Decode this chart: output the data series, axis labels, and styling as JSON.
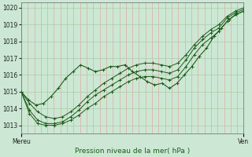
{
  "title": "Pression niveau de la mer( hPa )",
  "xlabel_left": "Mereu",
  "xlabel_right": "Ven",
  "ylim": [
    1012.5,
    1020.3
  ],
  "yticks": [
    1013,
    1014,
    1015,
    1016,
    1017,
    1018,
    1019,
    1020
  ],
  "bg_color": "#cce8d4",
  "plot_bg_color": "#cce8d4",
  "line_color": "#1a5c1a",
  "grid_color_v": "#e89898",
  "grid_color_h": "#a8cca8",
  "n_vgrid": 35,
  "series_smooth1": [
    1015.0,
    1014.3,
    1013.8,
    1013.5,
    1013.4,
    1013.5,
    1013.8,
    1014.2,
    1014.7,
    1015.1,
    1015.5,
    1015.8,
    1016.1,
    1016.4,
    1016.6,
    1016.7,
    1016.7,
    1016.6,
    1016.5,
    1016.7,
    1017.2,
    1017.8,
    1018.3,
    1018.7,
    1019.0,
    1019.5,
    1019.8,
    1020.0
  ],
  "series_smooth2": [
    1015.0,
    1013.7,
    1013.1,
    1013.0,
    1013.0,
    1013.1,
    1013.3,
    1013.6,
    1014.0,
    1014.3,
    1014.7,
    1015.0,
    1015.3,
    1015.6,
    1015.8,
    1015.9,
    1015.9,
    1015.8,
    1015.7,
    1015.9,
    1016.5,
    1017.2,
    1017.8,
    1018.2,
    1018.6,
    1019.2,
    1019.6,
    1019.8
  ],
  "series_smooth3": [
    1015.0,
    1013.9,
    1013.3,
    1013.1,
    1013.1,
    1013.2,
    1013.5,
    1013.9,
    1014.4,
    1014.8,
    1015.1,
    1015.4,
    1015.7,
    1016.0,
    1016.2,
    1016.3,
    1016.3,
    1016.2,
    1016.1,
    1016.3,
    1016.9,
    1017.6,
    1018.1,
    1018.5,
    1018.8,
    1019.4,
    1019.7,
    1019.9
  ],
  "series_wiggly": [
    1015.0,
    1014.5,
    1014.2,
    1014.3,
    1014.7,
    1015.2,
    1015.8,
    1016.2,
    1016.6,
    1016.4,
    1016.2,
    1016.3,
    1016.5,
    1016.5,
    1016.6,
    1016.2,
    1015.9,
    1015.6,
    1015.4,
    1015.5,
    1015.2,
    1015.5,
    1016.0,
    1016.5,
    1017.1,
    1017.6,
    1018.3,
    1018.8,
    1019.3,
    1019.6,
    1019.8
  ]
}
